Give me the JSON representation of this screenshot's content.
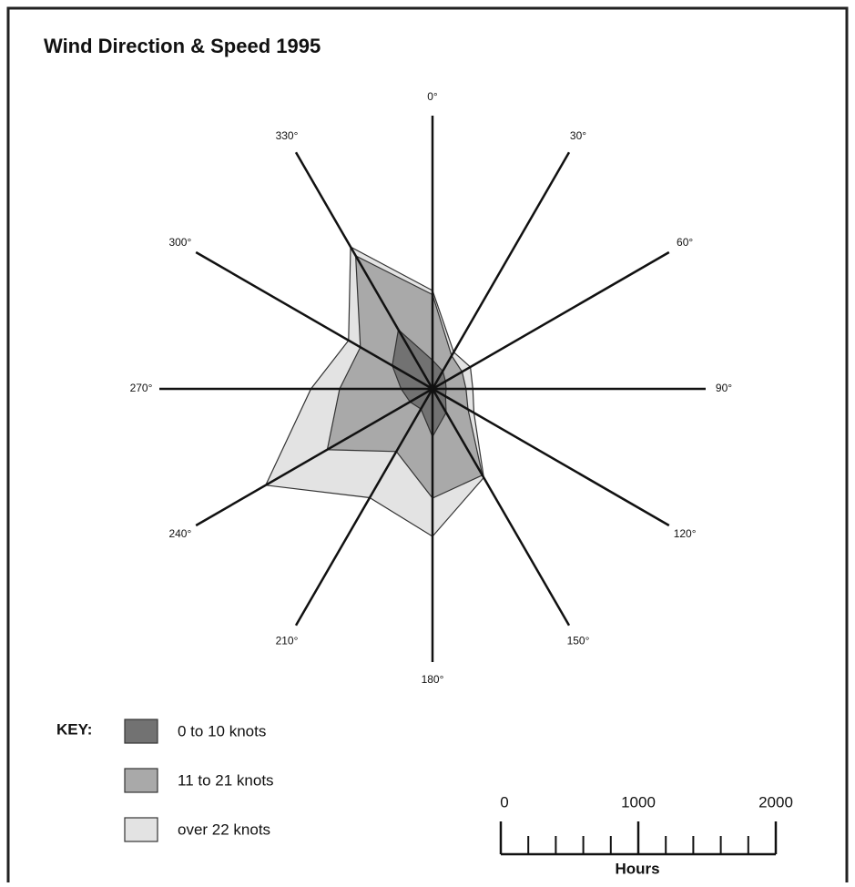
{
  "chart_data": {
    "type": "wind-rose",
    "title": "Wind Direction & Speed 1995",
    "categories": [
      "0°",
      "30°",
      "60°",
      "90°",
      "120°",
      "150°",
      "180°",
      "210°",
      "240°",
      "270°",
      "300°",
      "330°"
    ],
    "series": [
      {
        "name": "0 to 10 knots",
        "color": "#727272",
        "values": [
          210,
          150,
          110,
          100,
          110,
          200,
          350,
          170,
          190,
          230,
          340,
          500
        ]
      },
      {
        "name": "11 to 21 knots",
        "color": "#a9a9a9",
        "values": [
          480,
          130,
          140,
          145,
          190,
          530,
          450,
          360,
          700,
          450,
          270,
          625
        ]
      },
      {
        "name": "over 22 knots",
        "color": "#e3e3e3",
        "values": [
          30,
          30,
          70,
          50,
          50,
          20,
          280,
          390,
          520,
          210,
          100,
          75
        ]
      }
    ],
    "legend_title": "KEY:",
    "rlim": [
      0,
      2000
    ],
    "xlabel": "Hours",
    "xticks": [
      0,
      1000,
      2000
    ],
    "minor_xticks": [
      200,
      400,
      600,
      800,
      1200,
      1400,
      1600,
      1800
    ]
  }
}
